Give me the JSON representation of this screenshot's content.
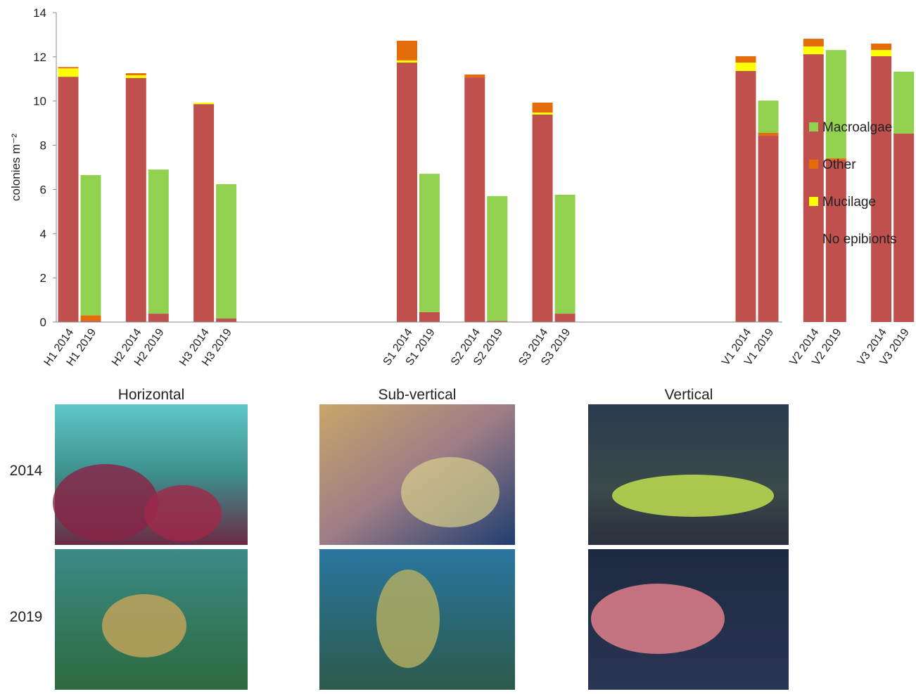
{
  "chart_data": {
    "type": "bar",
    "stacked": true,
    "y_label": "colonies m⁻²",
    "categories": [
      "H1 2014",
      "H1 2019",
      "H2 2014",
      "H2 2019",
      "H3 2014",
      "H3 2019",
      "S1 2014",
      "S1 2019",
      "S2 2014",
      "S2 2019",
      "S3 2014",
      "S3 2019",
      "V1 2014",
      "V1 2019",
      "V2 2014",
      "V2 2019",
      "V3 2014",
      "V3 2019"
    ],
    "series": [
      {
        "name": "No epibionts",
        "color": "#c0504d",
        "values": [
          11.1,
          0.05,
          11.04,
          0.38,
          9.86,
          0.16,
          11.74,
          0.45,
          11.07,
          0.05,
          9.39,
          0.38,
          11.36,
          8.43,
          12.12,
          7.32,
          12.03,
          8.53
        ]
      },
      {
        "name": "Mucilage",
        "color": "#ffff00",
        "values": [
          0.38,
          0,
          0.13,
          0,
          0.07,
          0,
          0.1,
          0,
          0,
          0,
          0.09,
          0,
          0.38,
          0,
          0.35,
          0,
          0.28,
          0
        ]
      },
      {
        "name": "Other",
        "color": "#e46c0a",
        "values": [
          0.06,
          0.25,
          0.09,
          0,
          0,
          0,
          0.89,
          0,
          0.13,
          0,
          0.45,
          0,
          0.29,
          0.13,
          0.35,
          0.09,
          0.29,
          0
        ]
      },
      {
        "name": "Macroalgae",
        "color": "#92d050",
        "values": [
          0,
          6.35,
          0,
          6.52,
          0,
          6.08,
          0,
          6.26,
          0,
          5.65,
          0,
          5.38,
          0,
          1.46,
          0,
          4.9,
          0,
          2.8
        ]
      }
    ],
    "ylim": [
      0,
      14
    ],
    "yticks": [
      0,
      2,
      4,
      6,
      8,
      10,
      12,
      14
    ],
    "legend": "right"
  },
  "photo_panel": {
    "columns": [
      "Horizontal",
      "Sub-vertical",
      "Vertical"
    ],
    "rows": [
      "2014",
      "2019"
    ]
  }
}
